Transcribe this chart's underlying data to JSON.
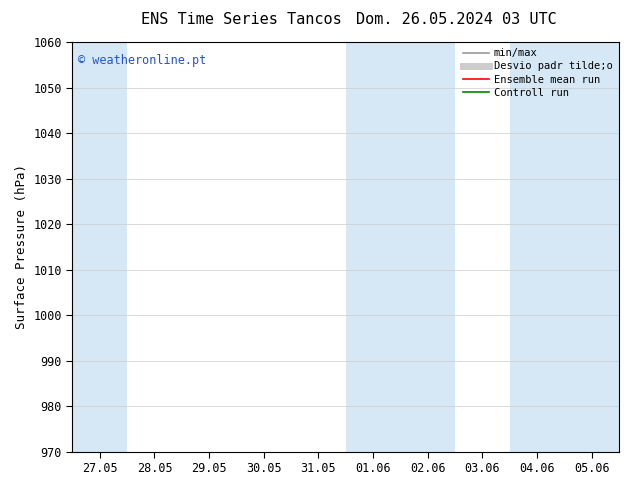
{
  "title_left": "ENS Time Series Tancos",
  "title_right": "Dom. 26.05.2024 03 UTC",
  "ylabel": "Surface Pressure (hPa)",
  "ylim": [
    970,
    1060
  ],
  "yticks": [
    970,
    980,
    990,
    1000,
    1010,
    1020,
    1030,
    1040,
    1050,
    1060
  ],
  "xlabels": [
    "27.05",
    "28.05",
    "29.05",
    "30.05",
    "31.05",
    "01.06",
    "02.06",
    "03.06",
    "04.06",
    "05.06"
  ],
  "shade_color": "#d6e8f5",
  "watermark": "© weatheronline.pt",
  "legend_labels": [
    "min/max",
    "Desvio padr tilde;o",
    "Ensemble mean run",
    "Controll run"
  ],
  "legend_colors": [
    "#999999",
    "#cccccc",
    "#ff0000",
    "#008800"
  ],
  "background_color": "#ffffff",
  "title_fontsize": 11,
  "axis_fontsize": 9,
  "tick_fontsize": 8.5,
  "fig_width": 6.34,
  "fig_height": 4.9,
  "dpi": 100
}
